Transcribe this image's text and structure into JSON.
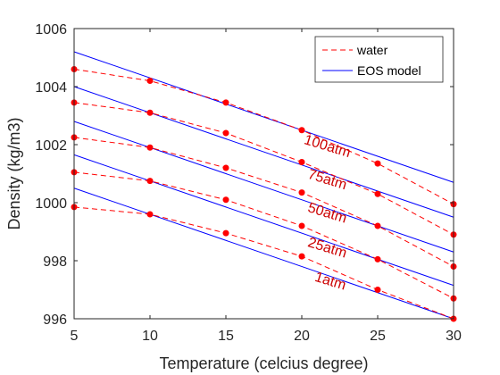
{
  "chart_data": {
    "type": "line",
    "xlabel": "Temperature (celcius degree)",
    "ylabel": "Density (kg/m3)",
    "xlim": [
      5,
      30
    ],
    "ylim": [
      996,
      1006
    ],
    "x_ticks": [
      5,
      10,
      15,
      20,
      25,
      30
    ],
    "y_ticks": [
      996,
      998,
      1000,
      1002,
      1004,
      1006
    ],
    "grid": false,
    "legend_position": "top-right",
    "legend": [
      "water",
      "EOS model"
    ],
    "colors": {
      "water": "#ff0000",
      "eos": "#0000ff",
      "annotation": "#cc0000"
    },
    "x": [
      5,
      10,
      15,
      20,
      25,
      30
    ],
    "water_series": [
      {
        "label": "1atm",
        "values": [
          999.85,
          999.6,
          998.95,
          998.15,
          997.0,
          996.0
        ]
      },
      {
        "label": "25atm",
        "values": [
          1001.05,
          1000.75,
          1000.1,
          999.2,
          998.05,
          996.7
        ]
      },
      {
        "label": "50atm",
        "values": [
          1002.25,
          1001.9,
          1001.2,
          1000.35,
          999.2,
          997.8
        ]
      },
      {
        "label": "75atm",
        "values": [
          1003.45,
          1003.1,
          1002.4,
          1001.4,
          1000.3,
          998.9
        ]
      },
      {
        "label": "100atm",
        "values": [
          1004.6,
          1004.2,
          1003.45,
          1002.5,
          1001.35,
          999.95
        ]
      }
    ],
    "eos_series": [
      {
        "pressure": "1atm",
        "values": [
          1000.5,
          996.0
        ]
      },
      {
        "pressure": "25atm",
        "values": [
          1001.65,
          997.15
        ]
      },
      {
        "pressure": "50atm",
        "values": [
          1002.8,
          998.3
        ]
      },
      {
        "pressure": "75atm",
        "values": [
          1004.0,
          999.5
        ]
      },
      {
        "pressure": "100atm",
        "values": [
          1005.2,
          1000.7
        ]
      }
    ],
    "annotations": [
      {
        "text": "1atm",
        "x": 21.8,
        "y": 997.15
      },
      {
        "text": "25atm",
        "x": 21.6,
        "y": 998.3
      },
      {
        "text": "50atm",
        "x": 21.6,
        "y": 999.5
      },
      {
        "text": "75atm",
        "x": 21.6,
        "y": 1000.65
      },
      {
        "text": "100atm",
        "x": 21.6,
        "y": 1001.8
      }
    ]
  }
}
